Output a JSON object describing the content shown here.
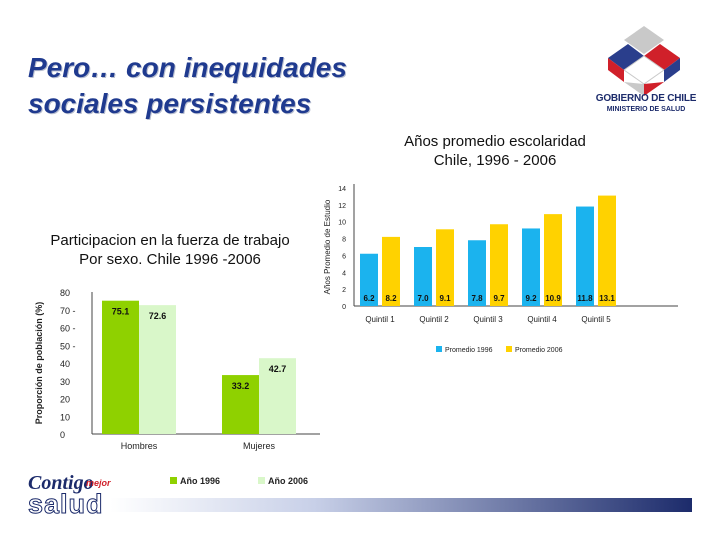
{
  "slide": {
    "title_line1": "Pero… con inequidades",
    "title_line2": "sociales  persistentes"
  },
  "logo": {
    "line1": "GOBIERNO DE CHILE",
    "line2": "MINISTERIO DE SALUD"
  },
  "brand": {
    "contigo": "Contigo",
    "mejor": "mejor",
    "salud": "salud"
  },
  "colors": {
    "blue": "#1bb3ee",
    "yellow": "#ffd200",
    "green": "#8fd100",
    "light_green": "#d9f7c9",
    "title": "#1f3a8f"
  },
  "chart_data": [
    {
      "type": "bar",
      "title_line1": "Años promedio escolaridad",
      "title_line2": "Chile, 1996 - 2006",
      "ylabel": "Años Promedio de Estudio",
      "xlabel": "",
      "categories": [
        "Quintil 1",
        "Quintil 2",
        "Quintil 3",
        "Quintil 4",
        "Quintil 5"
      ],
      "series": [
        {
          "name": "Promedio 1996",
          "values": [
            6.2,
            7.0,
            7.8,
            9.2,
            11.8
          ],
          "labels": [
            "6.2",
            "7.0",
            "7.8",
            "9.2",
            "11.8"
          ]
        },
        {
          "name": "Promedio 2006",
          "values": [
            8.2,
            9.1,
            9.7,
            10.9,
            13.1
          ],
          "labels": [
            "8.2",
            "9.1",
            "9.7",
            "10.9",
            "13.1"
          ]
        }
      ],
      "yticks": [
        "14",
        "12",
        "10",
        "8",
        "6",
        "4",
        "2",
        "0"
      ],
      "ylim": [
        0,
        14
      ],
      "legend_position": "bottom"
    },
    {
      "type": "bar",
      "title_line1": "Participacion en la fuerza de trabajo",
      "title_line2": "Por sexo. Chile 1996 -2006",
      "ylabel": "Proporción de población (%)",
      "xlabel": "",
      "categories": [
        "Hombres",
        "Mujeres"
      ],
      "series": [
        {
          "name": "Año 1996",
          "values": [
            75.1,
            33.2
          ],
          "labels": [
            "75.1",
            "33.2"
          ]
        },
        {
          "name": "Año 2006",
          "values": [
            72.6,
            42.7
          ],
          "labels": [
            "72.6",
            "42.7"
          ]
        }
      ],
      "yticks": [
        "80",
        "70 -",
        "60 -",
        "50 -",
        "40",
        "30",
        "20",
        "10",
        "0"
      ],
      "ylim": [
        0,
        80
      ],
      "legend_position": "bottom"
    }
  ]
}
